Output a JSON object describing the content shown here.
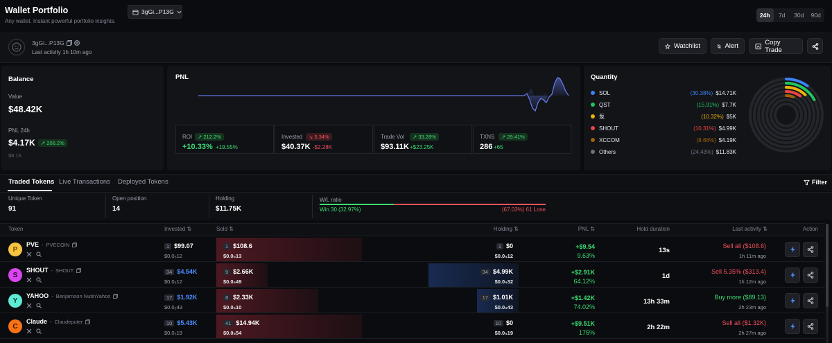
{
  "header": {
    "title": "Wallet Portfolio",
    "subtitle": "Any wallet. Instant powerful portfolio insights.",
    "wallet_selector": "3gGi...P13G",
    "timeframes": [
      "24h",
      "7d",
      "30d",
      "90d"
    ],
    "active_timeframe": "24h"
  },
  "profile": {
    "name": "3gGi...P13G",
    "last_activity": "Last activity 1h 10m ago",
    "buttons": {
      "watchlist": "Watchlist",
      "alert": "Alert",
      "copy_trade": "Copy Trade"
    }
  },
  "balance": {
    "title": "Balance",
    "value_label": "Value",
    "value": "$48.42K",
    "pnl_label": "PNL 24h",
    "pnl_value": "$4.17K",
    "pnl_badge": "206.2%",
    "pnl_sub": "$8.1K"
  },
  "pnl_panel": {
    "title": "PNL",
    "stats": [
      {
        "label": "ROI",
        "badge": "212.2%",
        "badge_dir": "up",
        "value": "+10.33%",
        "delta": "+19.55%",
        "delta_dir": "up"
      },
      {
        "label": "Invested",
        "badge": "5.34%",
        "badge_dir": "down",
        "value": "$40.37K",
        "delta": "-$2.28K",
        "delta_dir": "down"
      },
      {
        "label": "Trade Vol",
        "badge": "33.28%",
        "badge_dir": "up",
        "value": "$93.11K",
        "delta": "+$23.25K",
        "delta_dir": "up"
      },
      {
        "label": "TXNS",
        "badge": "29.41%",
        "badge_dir": "up",
        "value": "286",
        "delta": "+65",
        "delta_dir": "up"
      }
    ]
  },
  "quantity": {
    "title": "Quantity",
    "items": [
      {
        "name": "SOL",
        "pct": "(30.38%)",
        "value": "$14.71K",
        "color": "#3b82f6"
      },
      {
        "name": "QST",
        "pct": "(15.91%)",
        "value": "$7.7K",
        "color": "#22c55e"
      },
      {
        "name": "泵",
        "pct": "(10.32%)",
        "value": "$5K",
        "color": "#eab308"
      },
      {
        "name": "SHOUT",
        "pct": "(10.31%)",
        "value": "$4.99K",
        "color": "#ef4444"
      },
      {
        "name": "XCCOM",
        "pct": "(8.66%)",
        "value": "$4.19K",
        "color": "#a16207"
      },
      {
        "name": "Others",
        "pct": "(24.43%)",
        "value": "$11.83K",
        "color": "#6b7280"
      }
    ]
  },
  "tabs": {
    "items": [
      "Traded Tokens",
      "Live Transactions",
      "Deployed Tokens"
    ],
    "active": "Traded Tokens",
    "filter": "Filter"
  },
  "summary": {
    "unique_label": "Unique Token",
    "unique_value": "91",
    "open_label": "Open position",
    "open_value": "14",
    "holding_label": "Holding",
    "holding_value": "$11.75K",
    "wl_label": "W/L ratio",
    "win_text": "Win 30 (32.97%)",
    "lose_text": "(67.03%) 61 Lose",
    "win_fraction": 0.3297
  },
  "table": {
    "headers": {
      "token": "Token",
      "invested": "Invested",
      "sold": "Sold",
      "holding": "Holding",
      "pnl": "PNL",
      "hold": "Hold duration",
      "last": "Last activity",
      "action": "Action"
    },
    "rows": [
      {
        "symbol": "PVE",
        "name": "PVECOIN",
        "icon": "P",
        "icon_bg": "#f5c542",
        "icon_fg": "#7a4b00",
        "inv_count": "1",
        "inv_value": "$99.07",
        "inv_sub": "$0.0₅12",
        "inv_blue": false,
        "sold_count": "1",
        "sold_value": "$108.6",
        "sold_sub": "$0.0₅13",
        "hold_count": "1",
        "hold_value": "$0",
        "hold_sub": "$0.0₅12",
        "pnl_value": "+$9.54",
        "pnl_pct": "9.63%",
        "duration": "13s",
        "last_action": "Sell all ($108.6)",
        "last_dir": "sell",
        "last_time": "1h 11m ago",
        "sold_ratio": 1.0
      },
      {
        "symbol": "SHOUT",
        "name": "SHOUT",
        "icon": "S",
        "icon_bg": "#d946ef",
        "icon_fg": "#2b0030",
        "inv_count": "34",
        "inv_value": "$4.54K",
        "inv_sub": "$0.0₅12",
        "inv_blue": true,
        "sold_count": "9",
        "sold_value": "$2.66K",
        "sold_sub": "$0.0₅49",
        "hold_count": "34",
        "hold_value": "$4.99K",
        "hold_sub": "$0.0₅32",
        "pnl_value": "+$2.91K",
        "pnl_pct": "64.12%",
        "duration": "1d",
        "last_action": "Sell 5.35% ($313.4)",
        "last_dir": "sell",
        "last_time": "1h 12m ago",
        "sold_ratio": 0.35
      },
      {
        "symbol": "YAHOO",
        "name": "Benjamoon NutinYahoo",
        "icon": "Y",
        "icon_bg": "#5eead4",
        "icon_fg": "#0b3b36",
        "inv_count": "17",
        "inv_value": "$1.92K",
        "inv_sub": "$0.0₅43",
        "inv_blue": true,
        "sold_count": "8",
        "sold_value": "$2.33K",
        "sold_sub": "$0.0₅10",
        "hold_count": "17",
        "hold_value": "$1.01K",
        "hold_sub": "$0.0₅43",
        "pnl_value": "+$1.42K",
        "pnl_pct": "74.02%",
        "duration": "13h 33m",
        "last_action": "Buy more ($89.13)",
        "last_dir": "buy",
        "last_time": "2h 23m ago",
        "sold_ratio": 0.7
      },
      {
        "symbol": "Claude",
        "name": "Claudeputer",
        "icon": "C",
        "icon_bg": "#f97316",
        "icon_fg": "#3b1400",
        "inv_count": "10",
        "inv_value": "$5.43K",
        "inv_sub": "$0.0₅19",
        "inv_blue": true,
        "sold_count": "41",
        "sold_value": "$14.94K",
        "sold_sub": "$0.0₅54",
        "hold_count": "10",
        "hold_value": "$0",
        "hold_sub": "$0.0₅19",
        "pnl_value": "+$9.51K",
        "pnl_pct": "175%",
        "duration": "2h 22m",
        "last_action": "Sell all ($1.32K)",
        "last_dir": "sell",
        "last_time": "2h 27m ago",
        "sold_ratio": 1.0
      }
    ]
  }
}
